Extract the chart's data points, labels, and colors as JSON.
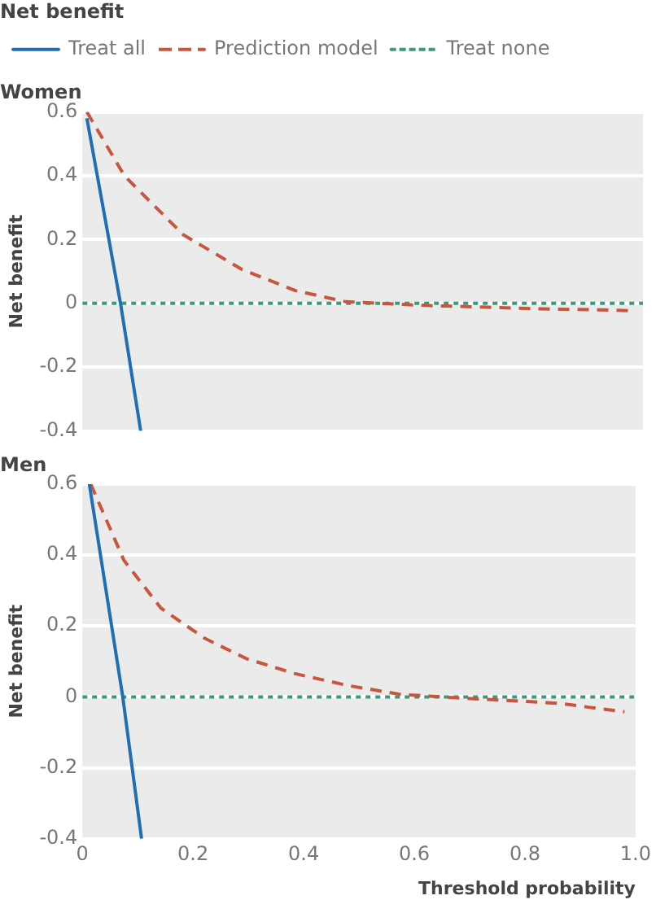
{
  "chart_data": [
    {
      "type": "line",
      "title": "Women",
      "ylabel": "Net benefit",
      "legend_title": "Net benefit",
      "legend": "top left",
      "grid": "y",
      "tick_labels": "y",
      "marker": "none",
      "xlim": [
        0,
        1
      ],
      "xticks": [
        0,
        0.2,
        0.4,
        0.6,
        0.8,
        1.0
      ],
      "ylim": [
        -0.4,
        0.6
      ],
      "yticks": [
        -0.4,
        -0.2,
        0,
        0.2,
        0.4,
        0.6
      ],
      "series": [
        {
          "name": "Treat all",
          "color": "#1f6fb4",
          "line_style": "solid",
          "x": [
            0.008,
            0.068,
            0.104
          ],
          "values": [
            0.58,
            0,
            -0.4
          ]
        },
        {
          "name": "Prediction model",
          "color": "#c8553d",
          "line_style": "dashed",
          "x": [
            0.008,
            0.075,
            0.18,
            0.285,
            0.38,
            0.47,
            0.53,
            0.62,
            0.72,
            0.815,
            0.91,
            0.98
          ],
          "values": [
            0.6,
            0.4,
            0.215,
            0.106,
            0.04,
            0.005,
            0,
            -0.007,
            -0.012,
            -0.017,
            -0.02,
            -0.023
          ]
        },
        {
          "name": "Treat none",
          "color": "#3a9a7a",
          "line_style": "dotted",
          "x": [
            0,
            1
          ],
          "values": [
            0,
            0
          ]
        }
      ]
    },
    {
      "type": "line",
      "title": "Men",
      "xlabel": "Threshold probability",
      "ylabel": "Net benefit",
      "grid": "y",
      "marker": "none",
      "xlim": [
        0,
        1
      ],
      "xticks": [
        0,
        0.2,
        0.4,
        0.6,
        0.8,
        {
          "value": 1,
          "label": "1.0"
        }
      ],
      "ylim": [
        -0.4,
        0.6
      ],
      "yticks": [
        -0.4,
        -0.2,
        0,
        0.2,
        0.4,
        0.6
      ],
      "series": [
        {
          "color": "#1f6fb4",
          "line_style": "solid",
          "x": [
            0.0125,
            0.073,
            0.107
          ],
          "values": [
            0.6,
            0,
            -0.4
          ]
        },
        {
          "color": "#c8553d",
          "line_style": "dashed",
          "x": [
            0.015,
            0.075,
            0.142,
            0.22,
            0.296,
            0.383,
            0.48,
            0.575,
            0.67,
            0.767,
            0.86,
            0.98
          ],
          "values": [
            0.6,
            0.385,
            0.25,
            0.166,
            0.108,
            0.066,
            0.032,
            0.007,
            -0.002,
            -0.01,
            -0.018,
            -0.042
          ]
        },
        {
          "color": "#3a9a7a",
          "line_style": "dotted",
          "x": [
            0,
            1
          ],
          "values": [
            0,
            0
          ]
        }
      ]
    }
  ]
}
